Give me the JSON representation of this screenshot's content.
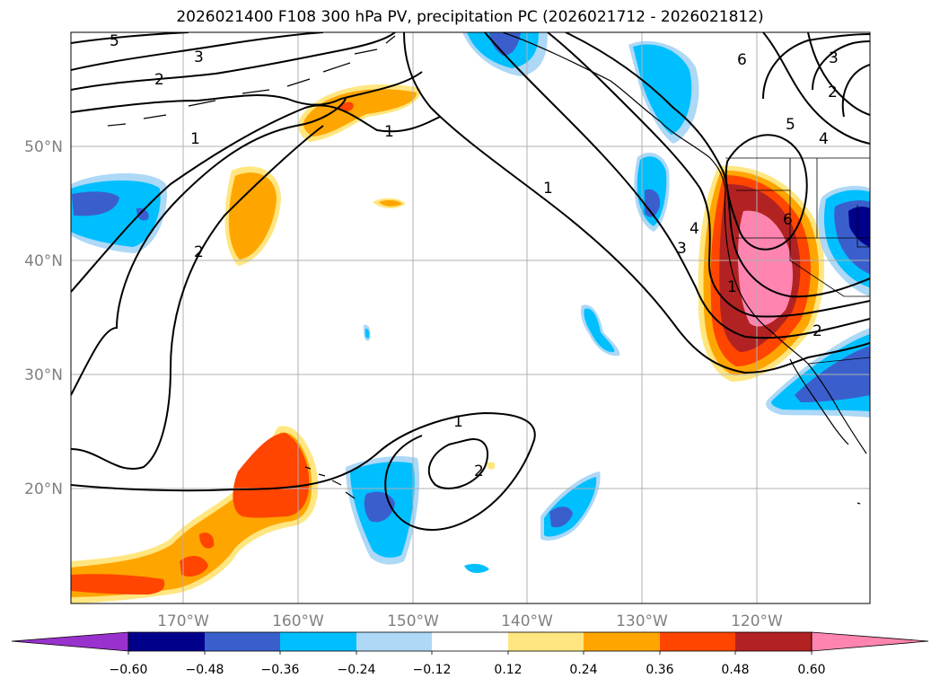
{
  "title": "2026021400 F108 300 hPa PV, precipitation PC (2026021712 - 2026021812)",
  "map": {
    "lon_labels": [
      "170°W",
      "160°W",
      "150°W",
      "140°W",
      "130°W",
      "120°W"
    ],
    "lat_labels": [
      "50°N",
      "40°N",
      "30°N",
      "20°N"
    ],
    "contour_labels": [
      "5",
      "3",
      "2",
      "1",
      "1",
      "2",
      "1",
      "2",
      "1",
      "6",
      "3",
      "2",
      "5",
      "4",
      "6",
      "4",
      "3",
      "2",
      "1"
    ]
  },
  "colorbar": {
    "tick_labels": [
      "−0.60",
      "−0.48",
      "−0.36",
      "−0.24",
      "−0.12",
      "0.12",
      "0.24",
      "0.36",
      "0.48",
      "0.60"
    ],
    "colors": [
      "#9932cc",
      "#00008b",
      "#3a5fcd",
      "#00bfff",
      "#add8f6",
      "#ffffff",
      "#ffe680",
      "#ffa500",
      "#ff4500",
      "#b22222",
      "#ff85b0"
    ]
  }
}
